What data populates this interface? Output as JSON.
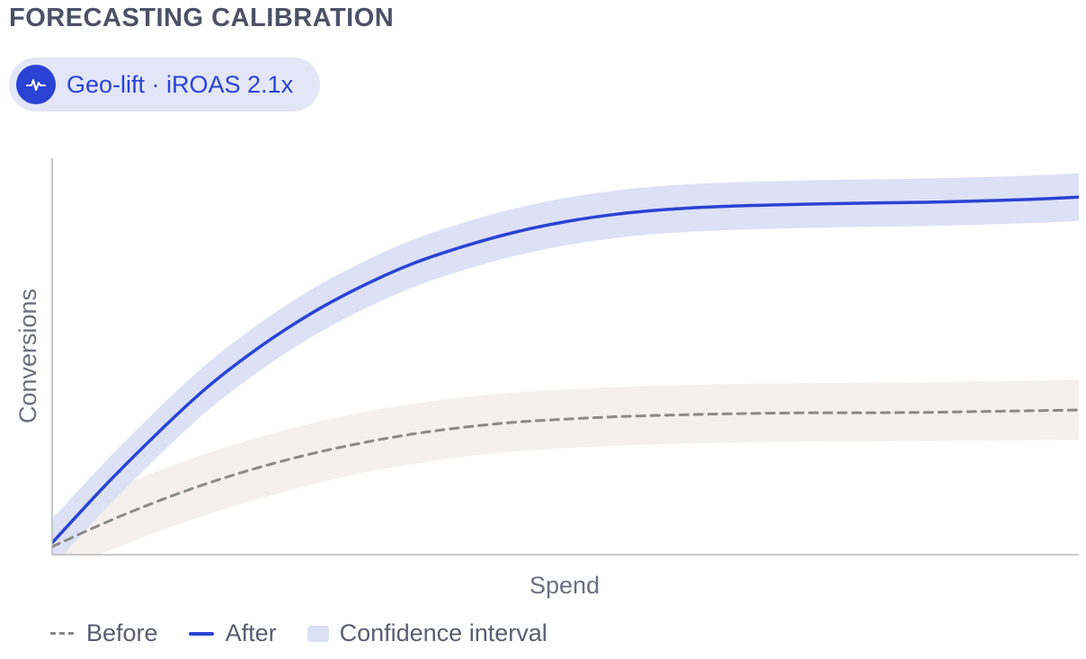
{
  "header": {
    "title": "FORECASTING CALIBRATION",
    "badge_label": "Geo-lift · iROAS 2.1x",
    "badge_icon": "pulse-icon"
  },
  "colors": {
    "after": "#2a43d4",
    "after_band": "#dde1f6",
    "before": "#8a8a8a",
    "before_band": "#f3f0ed",
    "axis": "#b8b8b8"
  },
  "legend": {
    "before": "Before",
    "after": "After",
    "confidence": "Confidence interval"
  },
  "chart_data": {
    "type": "line",
    "xlabel": "Spend",
    "ylabel": "Conversions",
    "xlim": [
      0,
      100
    ],
    "ylim": [
      0,
      100
    ],
    "grid": false,
    "legend_position": "bottom-left",
    "series": [
      {
        "name": "Before",
        "style": "dashed",
        "x": [
          0,
          5,
          10,
          15,
          20,
          25,
          30,
          35,
          40,
          45,
          50,
          55,
          60,
          65,
          70,
          75,
          80,
          85,
          90,
          95,
          100
        ],
        "y": [
          2,
          7.9,
          13.2,
          17.9,
          21.9,
          25.3,
          28.1,
          30.4,
          32.1,
          33.4,
          34.2,
          34.8,
          35.2,
          35.5,
          35.7,
          35.8,
          35.8,
          35.9,
          36.1,
          36.3,
          36.5
        ],
        "lower": [
          -4,
          0.5,
          5.5,
          10,
          14,
          17.5,
          20.5,
          22.8,
          24.7,
          26,
          26.9,
          27.5,
          27.9,
          28.2,
          28.4,
          28.5,
          28.6,
          28.7,
          28.8,
          28.9,
          29
        ],
        "upper": [
          10,
          15.5,
          20.8,
          25.5,
          29.5,
          33,
          35.8,
          38,
          39.7,
          40.9,
          41.7,
          42.3,
          42.7,
          43,
          43.2,
          43.3,
          43.4,
          43.5,
          43.7,
          43.9,
          44.2
        ]
      },
      {
        "name": "After",
        "style": "solid",
        "x": [
          0,
          5,
          10,
          15,
          20,
          25,
          30,
          35,
          40,
          45,
          50,
          55,
          60,
          65,
          70,
          75,
          80,
          85,
          90,
          95,
          100
        ],
        "y": [
          3,
          17,
          30,
          42,
          52,
          60.5,
          67.5,
          73.3,
          77.7,
          81.3,
          84,
          85.9,
          87.1,
          87.8,
          88.2,
          88.5,
          88.7,
          88.9,
          89.2,
          89.6,
          90.2
        ],
        "lower": [
          -3,
          11,
          24,
          36,
          46,
          54.5,
          61.5,
          67.3,
          71.7,
          75.3,
          78,
          79.9,
          81.1,
          81.8,
          82.2,
          82.5,
          82.7,
          82.9,
          83.2,
          83.6,
          84.2
        ],
        "upper": [
          9,
          23,
          36,
          48,
          58,
          66.5,
          73.5,
          79.3,
          83.7,
          87.3,
          90,
          91.9,
          93.1,
          93.8,
          94.2,
          94.5,
          94.7,
          94.9,
          95.2,
          95.6,
          96.2
        ]
      }
    ]
  }
}
